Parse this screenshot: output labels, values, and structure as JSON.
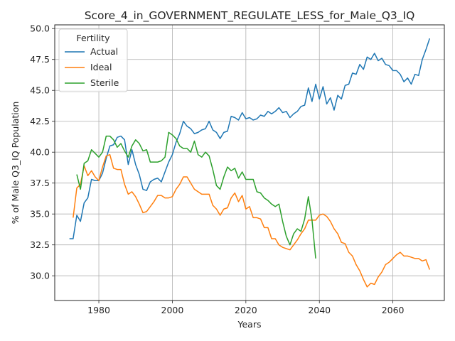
{
  "chart_data": {
    "type": "line",
    "title": "Score_4_in_GOVERNMENT_REGULATE_LESS_for_Male_Q3_IQ",
    "xlabel": "Years",
    "ylabel": "% of Male Q3_IQ Population",
    "xlim": [
      1968,
      2074
    ],
    "ylim": [
      28.0,
      50.3
    ],
    "xticks": [
      1980,
      2000,
      2020,
      2040,
      2060
    ],
    "xtick_labels": [
      "1980",
      "2000",
      "2020",
      "2040",
      "2060"
    ],
    "yticks": [
      30.0,
      32.5,
      35.0,
      37.5,
      40.0,
      42.5,
      45.0,
      47.5,
      50.0
    ],
    "ytick_labels": [
      "30.0",
      "32.5",
      "35.0",
      "37.5",
      "40.0",
      "42.5",
      "45.0",
      "47.5",
      "50.0"
    ],
    "grid": true,
    "legend": {
      "title": "Fertility",
      "position": "upper-left"
    },
    "series": [
      {
        "name": "Actual",
        "color": "#1f77b4",
        "x": [
          1972,
          1973,
          1974,
          1975,
          1976,
          1977,
          1978,
          1979,
          1980,
          1981,
          1982,
          1983,
          1984,
          1985,
          1986,
          1987,
          1988,
          1989,
          1990,
          1991,
          1992,
          1993,
          1994,
          1995,
          1996,
          1997,
          1998,
          1999,
          2000,
          2001,
          2002,
          2003,
          2004,
          2005,
          2006,
          2007,
          2008,
          2009,
          2010,
          2011,
          2012,
          2013,
          2014,
          2015,
          2016,
          2017,
          2018,
          2019,
          2020,
          2021,
          2022,
          2023,
          2024,
          2025,
          2026,
          2027,
          2028,
          2029,
          2030,
          2031,
          2032,
          2033,
          2034,
          2035,
          2036,
          2037,
          2038,
          2039,
          2040,
          2041,
          2042,
          2043,
          2044,
          2045,
          2046,
          2047,
          2048,
          2049,
          2050,
          2051,
          2052,
          2053,
          2054,
          2055,
          2056,
          2057,
          2058,
          2059,
          2060,
          2061,
          2062,
          2063,
          2064,
          2065,
          2066,
          2067,
          2068,
          2069,
          2070
        ],
        "values": [
          33.0,
          33.0,
          34.9,
          34.4,
          35.9,
          36.3,
          37.8,
          37.7,
          37.7,
          38.3,
          39.5,
          40.5,
          40.6,
          41.2,
          41.3,
          41.0,
          39.0,
          40.2,
          39.0,
          38.2,
          37.0,
          36.9,
          37.6,
          37.8,
          37.9,
          37.6,
          38.4,
          39.2,
          39.8,
          40.8,
          41.5,
          42.5,
          42.1,
          41.9,
          41.5,
          41.6,
          41.8,
          41.9,
          42.5,
          41.8,
          41.6,
          41.1,
          41.6,
          41.7,
          42.9,
          42.8,
          42.6,
          43.2,
          42.7,
          42.8,
          42.6,
          42.7,
          43.0,
          42.9,
          43.3,
          43.1,
          43.3,
          43.6,
          43.2,
          43.3,
          42.8,
          43.1,
          43.3,
          43.7,
          43.8,
          45.2,
          44.1,
          45.5,
          44.3,
          45.3,
          43.9,
          44.4,
          43.4,
          44.6,
          44.3,
          45.4,
          45.5,
          46.4,
          46.3,
          47.1,
          46.7,
          47.7,
          47.5,
          48.0,
          47.4,
          47.6,
          47.1,
          47.0,
          46.6,
          46.6,
          46.3,
          45.7,
          46.0,
          45.5,
          46.3,
          46.2,
          47.5,
          48.3,
          49.2
        ]
      },
      {
        "name": "Ideal",
        "color": "#ff7f0e",
        "x": [
          1973,
          1974,
          1975,
          1976,
          1977,
          1978,
          1979,
          1980,
          1981,
          1982,
          1983,
          1984,
          1985,
          1986,
          1987,
          1988,
          1989,
          1990,
          1991,
          1992,
          1993,
          1994,
          1995,
          1996,
          1997,
          1998,
          1999,
          2000,
          2001,
          2002,
          2003,
          2004,
          2005,
          2006,
          2007,
          2008,
          2009,
          2010,
          2011,
          2012,
          2013,
          2014,
          2015,
          2016,
          2017,
          2018,
          2019,
          2020,
          2021,
          2022,
          2023,
          2024,
          2025,
          2026,
          2027,
          2028,
          2029,
          2030,
          2031,
          2032,
          2033,
          2034,
          2035,
          2036,
          2037,
          2038,
          2039,
          2040,
          2041,
          2042,
          2043,
          2044,
          2045,
          2046,
          2047,
          2048,
          2049,
          2050,
          2051,
          2052,
          2053,
          2054,
          2055,
          2056,
          2057,
          2058,
          2059,
          2060,
          2061,
          2062,
          2063,
          2064,
          2065,
          2066,
          2067,
          2068,
          2069,
          2070
        ],
        "values": [
          34.7,
          37.1,
          37.4,
          38.9,
          38.1,
          38.5,
          38.0,
          37.7,
          38.8,
          39.7,
          39.8,
          38.7,
          38.6,
          38.6,
          37.4,
          36.6,
          36.8,
          36.4,
          35.8,
          35.1,
          35.2,
          35.6,
          36.0,
          36.5,
          36.5,
          36.3,
          36.3,
          36.4,
          37.0,
          37.4,
          38.0,
          38.0,
          37.5,
          37.0,
          36.8,
          36.6,
          36.6,
          36.6,
          35.7,
          35.4,
          34.9,
          35.4,
          35.5,
          36.3,
          36.7,
          36.0,
          36.5,
          35.4,
          35.6,
          34.7,
          34.7,
          34.6,
          33.9,
          33.9,
          33.0,
          33.0,
          32.5,
          32.3,
          32.2,
          32.1,
          32.5,
          32.9,
          33.4,
          33.8,
          34.5,
          34.5,
          34.5,
          34.9,
          35.0,
          34.8,
          34.4,
          33.8,
          33.4,
          32.7,
          32.6,
          31.9,
          31.6,
          30.9,
          30.4,
          29.7,
          29.1,
          29.4,
          29.3,
          29.9,
          30.3,
          30.9,
          31.1,
          31.4,
          31.7,
          31.9,
          31.6,
          31.6,
          31.5,
          31.4,
          31.4,
          31.2,
          31.3,
          30.5
        ]
      },
      {
        "name": "Sterile",
        "color": "#2ca02c",
        "x": [
          1974,
          1975,
          1976,
          1977,
          1978,
          1979,
          1980,
          1981,
          1982,
          1983,
          1984,
          1985,
          1986,
          1987,
          1988,
          1989,
          1990,
          1991,
          1992,
          1993,
          1994,
          1995,
          1996,
          1997,
          1998,
          1999,
          2000,
          2001,
          2002,
          2003,
          2004,
          2005,
          2006,
          2007,
          2008,
          2009,
          2010,
          2011,
          2012,
          2013,
          2014,
          2015,
          2016,
          2017,
          2018,
          2019,
          2020,
          2021,
          2022,
          2023,
          2024,
          2025,
          2026,
          2027,
          2028,
          2029,
          2030,
          2031,
          2032,
          2033,
          2034,
          2035,
          2036,
          2037,
          2038,
          2039
        ],
        "values": [
          38.2,
          37.0,
          39.1,
          39.3,
          40.2,
          39.9,
          39.6,
          40.0,
          41.3,
          41.3,
          41.0,
          40.4,
          40.7,
          40.1,
          39.6,
          40.5,
          41.0,
          40.7,
          40.1,
          40.2,
          39.2,
          39.2,
          39.2,
          39.3,
          39.6,
          41.6,
          41.4,
          41.1,
          40.5,
          40.3,
          40.3,
          40.0,
          40.9,
          39.8,
          39.6,
          40.0,
          39.7,
          38.6,
          37.3,
          37.0,
          38.0,
          38.8,
          38.5,
          38.7,
          37.9,
          38.4,
          37.8,
          37.8,
          37.8,
          36.8,
          36.7,
          36.3,
          36.1,
          35.8,
          35.6,
          35.8,
          34.4,
          33.2,
          32.5,
          33.4,
          33.8,
          33.6,
          34.6,
          36.4,
          34.5,
          31.4
        ]
      }
    ]
  }
}
